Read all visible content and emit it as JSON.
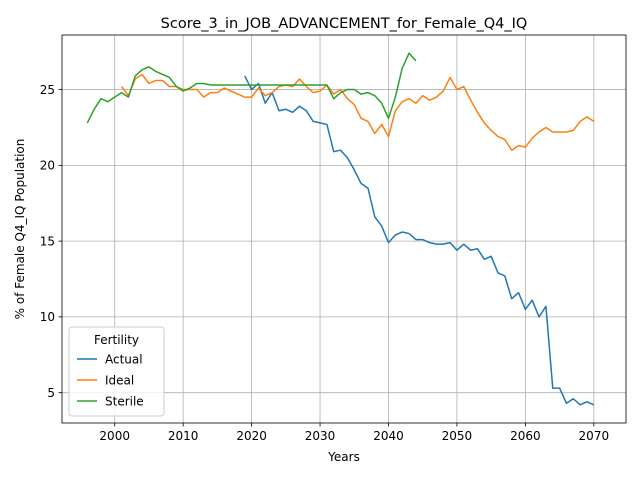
{
  "chart_data": {
    "type": "line",
    "title": "Score_3_in_JOB_ADVANCEMENT_for_Female_Q4_IQ",
    "xlabel": "Years",
    "ylabel": "% of Female Q4_IQ Population",
    "xlim": [
      1992.3,
      2074.7
    ],
    "ylim": [
      3.0,
      28.6
    ],
    "xticks": [
      2000,
      2010,
      2020,
      2030,
      2040,
      2050,
      2060,
      2070
    ],
    "yticks": [
      5,
      10,
      15,
      20,
      25
    ],
    "grid": true,
    "legend": {
      "title": "Fertility",
      "position": "lower-left"
    },
    "series": [
      {
        "name": "Actual",
        "color": "#1f77b4",
        "points": [
          [
            2019,
            25.9
          ],
          [
            2020,
            25.0
          ],
          [
            2021,
            25.4
          ],
          [
            2022,
            24.1
          ],
          [
            2023,
            24.8
          ],
          [
            2024,
            23.6
          ],
          [
            2025,
            23.7
          ],
          [
            2026,
            23.5
          ],
          [
            2027,
            23.9
          ],
          [
            2028,
            23.6
          ],
          [
            2029,
            22.9
          ],
          [
            2030,
            22.8
          ],
          [
            2031,
            22.7
          ],
          [
            2032,
            20.9
          ],
          [
            2033,
            21.0
          ],
          [
            2034,
            20.5
          ],
          [
            2035,
            19.7
          ],
          [
            2036,
            18.8
          ],
          [
            2037,
            18.5
          ],
          [
            2038,
            16.6
          ],
          [
            2039,
            16.0
          ],
          [
            2040,
            14.9
          ],
          [
            2041,
            15.4
          ],
          [
            2042,
            15.6
          ],
          [
            2043,
            15.5
          ],
          [
            2044,
            15.1
          ],
          [
            2045,
            15.1
          ],
          [
            2046,
            14.9
          ],
          [
            2047,
            14.8
          ],
          [
            2048,
            14.8
          ],
          [
            2049,
            14.9
          ],
          [
            2050,
            14.4
          ],
          [
            2051,
            14.8
          ],
          [
            2052,
            14.4
          ],
          [
            2053,
            14.5
          ],
          [
            2054,
            13.8
          ],
          [
            2055,
            14.0
          ],
          [
            2056,
            12.9
          ],
          [
            2057,
            12.7
          ],
          [
            2058,
            11.2
          ],
          [
            2059,
            11.6
          ],
          [
            2060,
            10.5
          ],
          [
            2061,
            11.1
          ],
          [
            2062,
            10.0
          ],
          [
            2063,
            10.7
          ],
          [
            2064,
            5.3
          ],
          [
            2065,
            5.3
          ],
          [
            2066,
            4.3
          ],
          [
            2067,
            4.6
          ],
          [
            2068,
            4.2
          ],
          [
            2069,
            4.4
          ],
          [
            2070,
            4.2
          ]
        ]
      },
      {
        "name": "Ideal",
        "color": "#ff7f0e",
        "points": [
          [
            2001,
            25.2
          ],
          [
            2002,
            24.6
          ],
          [
            2003,
            25.7
          ],
          [
            2004,
            26.0
          ],
          [
            2005,
            25.4
          ],
          [
            2006,
            25.6
          ],
          [
            2007,
            25.6
          ],
          [
            2008,
            25.2
          ],
          [
            2009,
            25.2
          ],
          [
            2010,
            25.0
          ],
          [
            2011,
            25.0
          ],
          [
            2012,
            25.0
          ],
          [
            2013,
            24.5
          ],
          [
            2014,
            24.8
          ],
          [
            2015,
            24.8
          ],
          [
            2016,
            25.1
          ],
          [
            2017,
            24.9
          ],
          [
            2018,
            24.7
          ],
          [
            2019,
            24.5
          ],
          [
            2020,
            24.5
          ],
          [
            2021,
            25.1
          ],
          [
            2022,
            24.6
          ],
          [
            2023,
            24.8
          ],
          [
            2024,
            25.2
          ],
          [
            2025,
            25.3
          ],
          [
            2026,
            25.2
          ],
          [
            2027,
            25.7
          ],
          [
            2028,
            25.2
          ],
          [
            2029,
            24.8
          ],
          [
            2030,
            24.9
          ],
          [
            2031,
            25.3
          ],
          [
            2032,
            24.7
          ],
          [
            2033,
            25.0
          ],
          [
            2034,
            24.4
          ],
          [
            2035,
            24.0
          ],
          [
            2036,
            23.1
          ],
          [
            2037,
            22.9
          ],
          [
            2038,
            22.1
          ],
          [
            2039,
            22.7
          ],
          [
            2040,
            21.9
          ],
          [
            2041,
            23.6
          ],
          [
            2042,
            24.2
          ],
          [
            2043,
            24.4
          ],
          [
            2044,
            24.1
          ],
          [
            2045,
            24.6
          ],
          [
            2046,
            24.3
          ],
          [
            2047,
            24.5
          ],
          [
            2048,
            24.9
          ],
          [
            2049,
            25.8
          ],
          [
            2050,
            25.0
          ],
          [
            2051,
            25.2
          ],
          [
            2052,
            24.3
          ],
          [
            2053,
            23.5
          ],
          [
            2054,
            22.8
          ],
          [
            2055,
            22.3
          ],
          [
            2056,
            21.9
          ],
          [
            2057,
            21.7
          ],
          [
            2058,
            21.0
          ],
          [
            2059,
            21.3
          ],
          [
            2060,
            21.2
          ],
          [
            2061,
            21.8
          ],
          [
            2062,
            22.2
          ],
          [
            2063,
            22.5
          ],
          [
            2064,
            22.2
          ],
          [
            2065,
            22.2
          ],
          [
            2066,
            22.2
          ],
          [
            2067,
            22.3
          ],
          [
            2068,
            22.9
          ],
          [
            2069,
            23.2
          ],
          [
            2070,
            22.9
          ]
        ]
      },
      {
        "name": "Sterile",
        "color": "#2ca02c",
        "points": [
          [
            1996,
            22.8
          ],
          [
            1997,
            23.7
          ],
          [
            1998,
            24.4
          ],
          [
            1999,
            24.2
          ],
          [
            2000,
            24.5
          ],
          [
            2001,
            24.8
          ],
          [
            2002,
            24.5
          ],
          [
            2003,
            25.9
          ],
          [
            2004,
            26.3
          ],
          [
            2005,
            26.5
          ],
          [
            2006,
            26.2
          ],
          [
            2007,
            26.0
          ],
          [
            2008,
            25.8
          ],
          [
            2009,
            25.2
          ],
          [
            2010,
            24.9
          ],
          [
            2011,
            25.1
          ],
          [
            2012,
            25.4
          ],
          [
            2013,
            25.4
          ],
          [
            2014,
            25.3
          ],
          [
            2015,
            25.3
          ],
          [
            2016,
            25.3
          ],
          [
            2017,
            25.3
          ],
          [
            2018,
            25.3
          ],
          [
            2019,
            25.3
          ],
          [
            2020,
            25.3
          ],
          [
            2021,
            25.3
          ],
          [
            2022,
            25.3
          ],
          [
            2023,
            25.3
          ],
          [
            2024,
            25.3
          ],
          [
            2025,
            25.3
          ],
          [
            2026,
            25.3
          ],
          [
            2027,
            25.3
          ],
          [
            2028,
            25.3
          ],
          [
            2029,
            25.3
          ],
          [
            2030,
            25.3
          ],
          [
            2031,
            25.3
          ],
          [
            2032,
            24.4
          ],
          [
            2033,
            24.8
          ],
          [
            2034,
            25.0
          ],
          [
            2035,
            25.0
          ],
          [
            2036,
            24.7
          ],
          [
            2037,
            24.8
          ],
          [
            2038,
            24.6
          ],
          [
            2039,
            24.1
          ],
          [
            2040,
            23.1
          ],
          [
            2041,
            24.5
          ],
          [
            2042,
            26.4
          ],
          [
            2043,
            27.4
          ],
          [
            2044,
            26.9
          ]
        ]
      }
    ]
  }
}
